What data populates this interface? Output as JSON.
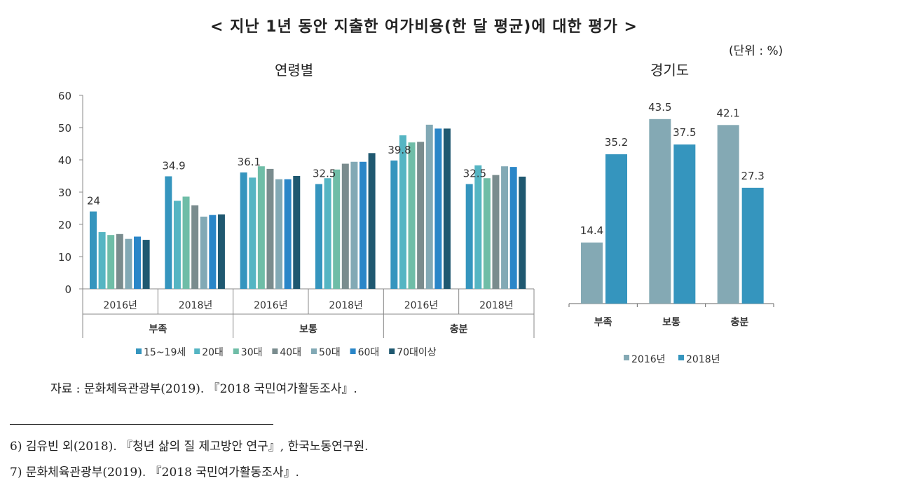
{
  "title": "< 지난 1년 동안 지출한 여가비용(한 달 평균)에 대한 평가 >",
  "unit": "(단위 : %)",
  "source": "자료 : 문화체육관광부(2019). 『2018 국민여가활동조사』.",
  "footnotes": [
    "6) 김유빈 외(2018). 『청년 삶의 질 제고방안 연구』, 한국노동연구원.",
    "7) 문화체육관광부(2019). 『2018 국민여가활동조사』."
  ],
  "chart_data": [
    {
      "type": "bar",
      "title": "연령별",
      "ylim": [
        0,
        60
      ],
      "yticks": [
        "0",
        "10",
        "20",
        "30",
        "40",
        "50",
        "60"
      ],
      "grid": false,
      "legend_position": "bottom",
      "categories": [
        {
          "year": "2016년",
          "group": "부족"
        },
        {
          "year": "2018년",
          "group": "부족"
        },
        {
          "year": "2016년",
          "group": "보통"
        },
        {
          "year": "2018년",
          "group": "보통"
        },
        {
          "year": "2016년",
          "group": "충분"
        },
        {
          "year": "2018년",
          "group": "충분"
        }
      ],
      "groups": [
        "부족",
        "보통",
        "충분"
      ],
      "data_labels": [
        "24",
        "34.9",
        "36.1",
        "32.5",
        "39.8",
        "32.5"
      ],
      "series": [
        {
          "name": "15~19세",
          "color": "#3595BE",
          "values": [
            24,
            34.9,
            36.1,
            32.5,
            39.8,
            32.5
          ]
        },
        {
          "name": "20대",
          "color": "#55B5C3",
          "values": [
            17.6,
            27.3,
            34.5,
            34.3,
            47.6,
            38.3
          ]
        },
        {
          "name": "30대",
          "color": "#6FBDA7",
          "values": [
            16.7,
            28.6,
            38.0,
            37.0,
            45.4,
            34.3
          ]
        },
        {
          "name": "40대",
          "color": "#7A8C8E",
          "values": [
            17.0,
            25.9,
            37.2,
            38.8,
            45.6,
            35.3
          ]
        },
        {
          "name": "50대",
          "color": "#82A9B5",
          "values": [
            15.5,
            22.4,
            34.0,
            39.4,
            50.9,
            38.0
          ]
        },
        {
          "name": "60대",
          "color": "#2A86C8",
          "values": [
            16.2,
            22.9,
            34.0,
            39.4,
            49.7,
            37.8
          ]
        },
        {
          "name": "70대이상",
          "color": "#1F5870",
          "values": [
            15.2,
            23.1,
            35.0,
            42.1,
            49.7,
            34.8
          ]
        }
      ]
    },
    {
      "type": "bar",
      "title": "경기도",
      "grid": false,
      "legend_position": "bottom",
      "categories": [
        "부족",
        "보통",
        "충분"
      ],
      "series": [
        {
          "name": "2016년",
          "color": "#84A9B4",
          "values": [
            14.4,
            43.5,
            42.1
          ]
        },
        {
          "name": "2018년",
          "color": "#3595BE",
          "values": [
            35.2,
            37.5,
            27.3
          ]
        }
      ]
    }
  ]
}
